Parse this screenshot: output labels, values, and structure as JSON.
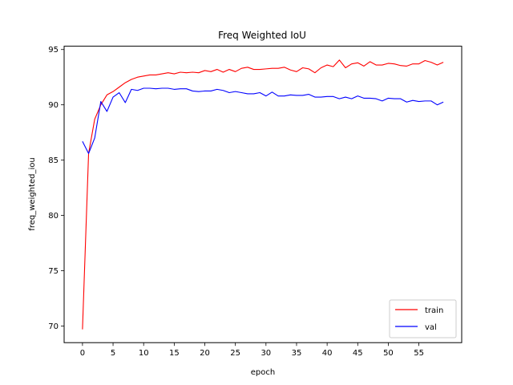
{
  "chart_data": {
    "type": "line",
    "title": "Freq Weighted IoU",
    "xlabel": "epoch",
    "ylabel": "freq_weighted_iou",
    "xlim": [
      -3,
      62
    ],
    "ylim": [
      68.5,
      95.3
    ],
    "xticks": [
      0,
      5,
      10,
      15,
      20,
      25,
      30,
      35,
      40,
      45,
      50,
      55
    ],
    "yticks": [
      70,
      75,
      80,
      85,
      90,
      95
    ],
    "grid": false,
    "legend_position": "lower-right",
    "x": [
      0,
      1,
      2,
      3,
      4,
      5,
      6,
      7,
      8,
      9,
      10,
      11,
      12,
      13,
      14,
      15,
      16,
      17,
      18,
      19,
      20,
      21,
      22,
      23,
      24,
      25,
      26,
      27,
      28,
      29,
      30,
      31,
      32,
      33,
      34,
      35,
      36,
      37,
      38,
      39,
      40,
      41,
      42,
      43,
      44,
      45,
      46,
      47,
      48,
      49,
      50,
      51,
      52,
      53,
      54,
      55,
      56,
      57,
      58,
      59
    ],
    "series": [
      {
        "name": "train",
        "color": "#ff0000",
        "values": [
          69.7,
          85.6,
          88.7,
          90.0,
          90.9,
          91.2,
          91.6,
          92.0,
          92.3,
          92.5,
          92.6,
          92.7,
          92.7,
          92.8,
          92.9,
          92.8,
          92.95,
          92.9,
          92.95,
          92.9,
          93.1,
          93.0,
          93.2,
          92.95,
          93.2,
          93.0,
          93.3,
          93.4,
          93.2,
          93.2,
          93.25,
          93.3,
          93.3,
          93.4,
          93.15,
          93.0,
          93.35,
          93.25,
          92.9,
          93.35,
          93.6,
          93.45,
          94.05,
          93.35,
          93.7,
          93.8,
          93.5,
          93.9,
          93.6,
          93.6,
          93.75,
          93.7,
          93.55,
          93.5,
          93.7,
          93.7,
          94.0,
          93.85,
          93.6,
          93.85
        ]
      },
      {
        "name": "val",
        "color": "#0000ff",
        "values": [
          86.7,
          85.6,
          87.0,
          90.3,
          89.4,
          90.7,
          91.1,
          90.2,
          91.4,
          91.3,
          91.5,
          91.5,
          91.45,
          91.5,
          91.5,
          91.4,
          91.45,
          91.45,
          91.25,
          91.2,
          91.25,
          91.25,
          91.4,
          91.3,
          91.1,
          91.2,
          91.1,
          91.0,
          91.0,
          91.1,
          90.8,
          91.15,
          90.8,
          90.8,
          90.9,
          90.85,
          90.85,
          90.95,
          90.7,
          90.7,
          90.75,
          90.75,
          90.55,
          90.7,
          90.55,
          90.8,
          90.6,
          90.6,
          90.55,
          90.35,
          90.6,
          90.55,
          90.55,
          90.25,
          90.4,
          90.3,
          90.35,
          90.35,
          90.0,
          90.25
        ]
      }
    ]
  }
}
